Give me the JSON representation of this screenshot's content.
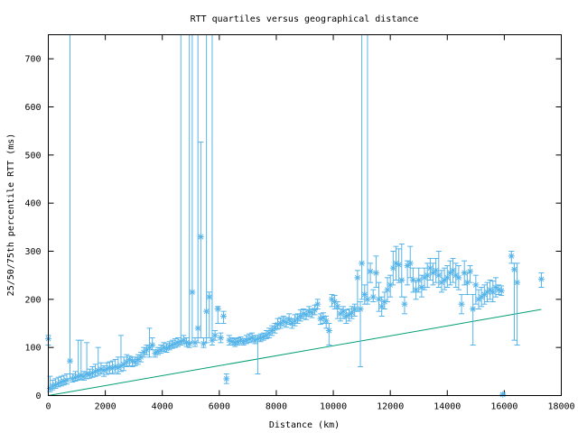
{
  "chart_data": {
    "type": "scatter",
    "title": "RTT quartiles versus geographical distance",
    "xlabel": "Distance (km)",
    "ylabel": "25/50/75th percentile RTT (ms)",
    "xlim": [
      0,
      18000
    ],
    "ylim": [
      0,
      750
    ],
    "xticks": [
      0,
      2000,
      4000,
      6000,
      8000,
      10000,
      12000,
      14000,
      16000,
      18000
    ],
    "yticks": [
      0,
      100,
      200,
      300,
      400,
      500,
      600,
      700
    ],
    "xtick_labels": [
      "0",
      "2000",
      "4000",
      "6000",
      "8000",
      "10000",
      "12000",
      "14000",
      "16000",
      "18000"
    ],
    "ytick_labels": [
      "0",
      "100",
      "200",
      "300",
      "400",
      "500",
      "600",
      "700"
    ],
    "grid": false,
    "legend": "none",
    "colors": {
      "points": "#56b4e9",
      "line": "#009e73"
    },
    "reference_line": {
      "x": [
        0,
        17300
      ],
      "y": [
        0,
        179
      ]
    },
    "series": [
      {
        "marker": "asterisk",
        "points": [
          [
            0,
            118,
            105,
            125
          ],
          [
            60,
            15,
            8,
            40
          ],
          [
            150,
            20,
            12,
            32
          ],
          [
            250,
            22,
            15,
            35
          ],
          [
            350,
            25,
            18,
            38
          ],
          [
            450,
            28,
            20,
            40
          ],
          [
            550,
            30,
            22,
            42
          ],
          [
            650,
            32,
            24,
            45
          ],
          [
            760,
            72,
            35,
            750
          ],
          [
            850,
            35,
            28,
            45
          ],
          [
            950,
            38,
            30,
            50
          ],
          [
            1050,
            40,
            32,
            115
          ],
          [
            1150,
            42,
            34,
            115
          ],
          [
            1250,
            40,
            32,
            50
          ],
          [
            1350,
            45,
            35,
            110
          ],
          [
            1450,
            44,
            36,
            55
          ],
          [
            1550,
            47,
            38,
            60
          ],
          [
            1650,
            50,
            40,
            65
          ],
          [
            1750,
            52,
            42,
            100
          ],
          [
            1850,
            55,
            45,
            68
          ],
          [
            1950,
            52,
            40,
            62
          ],
          [
            2050,
            55,
            44,
            68
          ],
          [
            2150,
            58,
            46,
            70
          ],
          [
            2250,
            57,
            45,
            72
          ],
          [
            2350,
            60,
            48,
            75
          ],
          [
            2450,
            58,
            45,
            80
          ],
          [
            2550,
            62,
            50,
            125
          ],
          [
            2650,
            65,
            52,
            80
          ],
          [
            2750,
            70,
            60,
            85
          ],
          [
            2850,
            75,
            62,
            82
          ],
          [
            2950,
            72,
            60,
            80
          ],
          [
            3050,
            70,
            62,
            80
          ],
          [
            3150,
            75,
            65,
            85
          ],
          [
            3250,
            80,
            70,
            90
          ],
          [
            3350,
            90,
            80,
            100
          ],
          [
            3450,
            95,
            85,
            105
          ],
          [
            3550,
            100,
            80,
            140
          ],
          [
            3650,
            105,
            95,
            120
          ],
          [
            3750,
            88,
            80,
            95
          ],
          [
            3850,
            92,
            85,
            100
          ],
          [
            3950,
            95,
            88,
            105
          ],
          [
            4050,
            100,
            92,
            110
          ],
          [
            4150,
            98,
            90,
            108
          ],
          [
            4250,
            102,
            95,
            112
          ],
          [
            4350,
            105,
            98,
            115
          ],
          [
            4450,
            108,
            100,
            118
          ],
          [
            4550,
            110,
            102,
            120
          ],
          [
            4650,
            112,
            105,
            750
          ],
          [
            4750,
            115,
            108,
            125
          ],
          [
            4850,
            110,
            102,
            120
          ],
          [
            4950,
            108,
            100,
            750
          ],
          [
            5050,
            215,
            110,
            750
          ],
          [
            5150,
            110,
            102,
            120
          ],
          [
            5250,
            140,
            110,
            750
          ],
          [
            5350,
            330,
            120,
            527
          ],
          [
            5450,
            108,
            100,
            120
          ],
          [
            5550,
            175,
            110,
            750
          ],
          [
            5650,
            205,
            120,
            215
          ],
          [
            5750,
            115,
            105,
            750
          ],
          [
            5850,
            125,
            115,
            135
          ],
          [
            5950,
            180,
            150,
            185
          ],
          [
            6050,
            120,
            110,
            130
          ],
          [
            6150,
            165,
            150,
            175
          ],
          [
            6250,
            35,
            25,
            45
          ],
          [
            6350,
            115,
            105,
            125
          ],
          [
            6450,
            112,
            105,
            120
          ],
          [
            6550,
            110,
            102,
            118
          ],
          [
            6650,
            112,
            105,
            120
          ],
          [
            6750,
            115,
            108,
            122
          ],
          [
            6850,
            112,
            105,
            118
          ],
          [
            6950,
            115,
            108,
            125
          ],
          [
            7050,
            118,
            110,
            128
          ],
          [
            7150,
            120,
            112,
            130
          ],
          [
            7250,
            115,
            108,
            125
          ],
          [
            7350,
            118,
            45,
            125
          ],
          [
            7450,
            120,
            112,
            128
          ],
          [
            7550,
            122,
            115,
            130
          ],
          [
            7650,
            125,
            118,
            135
          ],
          [
            7750,
            130,
            120,
            140
          ],
          [
            7850,
            135,
            125,
            145
          ],
          [
            7950,
            140,
            130,
            150
          ],
          [
            8050,
            148,
            138,
            160
          ],
          [
            8150,
            150,
            140,
            162
          ],
          [
            8250,
            155,
            145,
            165
          ],
          [
            8350,
            152,
            142,
            162
          ],
          [
            8450,
            158,
            148,
            170
          ],
          [
            8550,
            150,
            140,
            160
          ],
          [
            8650,
            155,
            145,
            168
          ],
          [
            8750,
            160,
            150,
            170
          ],
          [
            8850,
            165,
            155,
            178
          ],
          [
            8950,
            170,
            160,
            180
          ],
          [
            9050,
            168,
            158,
            178
          ],
          [
            9150,
            175,
            165,
            185
          ],
          [
            9250,
            172,
            162,
            180
          ],
          [
            9350,
            178,
            168,
            188
          ],
          [
            9450,
            190,
            180,
            200
          ],
          [
            9550,
            160,
            148,
            170
          ],
          [
            9650,
            162,
            150,
            172
          ],
          [
            9750,
            155,
            140,
            165
          ],
          [
            9850,
            135,
            105,
            150
          ],
          [
            9950,
            200,
            185,
            210
          ],
          [
            10050,
            195,
            180,
            208
          ],
          [
            10150,
            185,
            160,
            195
          ],
          [
            10250,
            170,
            155,
            180
          ],
          [
            10350,
            175,
            160,
            185
          ],
          [
            10450,
            165,
            150,
            178
          ],
          [
            10550,
            168,
            155,
            180
          ],
          [
            10650,
            172,
            160,
            185
          ],
          [
            10750,
            180,
            165,
            190
          ],
          [
            10850,
            245,
            175,
            260
          ],
          [
            10950,
            180,
            60,
            195
          ],
          [
            11000,
            275,
            200,
            750
          ],
          [
            11100,
            210,
            190,
            230
          ],
          [
            11200,
            200,
            190,
            750
          ],
          [
            11300,
            258,
            235,
            275
          ],
          [
            11400,
            205,
            195,
            220
          ],
          [
            11500,
            255,
            225,
            290
          ],
          [
            11600,
            200,
            175,
            235
          ],
          [
            11700,
            185,
            165,
            205
          ],
          [
            11800,
            195,
            180,
            215
          ],
          [
            11900,
            220,
            195,
            245
          ],
          [
            12000,
            230,
            205,
            250
          ],
          [
            12100,
            265,
            230,
            300
          ],
          [
            12200,
            275,
            240,
            310
          ],
          [
            12300,
            272,
            235,
            305
          ],
          [
            12400,
            240,
            205,
            315
          ],
          [
            12500,
            190,
            170,
            205
          ],
          [
            12600,
            270,
            230,
            280
          ],
          [
            12700,
            275,
            245,
            310
          ],
          [
            12800,
            240,
            215,
            265
          ],
          [
            12900,
            220,
            200,
            240
          ],
          [
            13000,
            240,
            215,
            265
          ],
          [
            13100,
            225,
            205,
            250
          ],
          [
            13200,
            245,
            220,
            265
          ],
          [
            13300,
            250,
            225,
            275
          ],
          [
            13400,
            265,
            240,
            285
          ],
          [
            13500,
            255,
            230,
            275
          ],
          [
            13600,
            260,
            235,
            285
          ],
          [
            13700,
            250,
            225,
            300
          ],
          [
            13800,
            235,
            215,
            260
          ],
          [
            13900,
            240,
            220,
            265
          ],
          [
            14000,
            245,
            225,
            270
          ],
          [
            14100,
            255,
            230,
            280
          ],
          [
            14200,
            260,
            235,
            285
          ],
          [
            14300,
            250,
            225,
            275
          ],
          [
            14400,
            245,
            220,
            270
          ],
          [
            14500,
            190,
            170,
            210
          ],
          [
            14600,
            255,
            230,
            280
          ],
          [
            14700,
            235,
            210,
            255
          ],
          [
            14800,
            258,
            235,
            270
          ],
          [
            14900,
            180,
            105,
            210
          ],
          [
            15000,
            230,
            190,
            250
          ],
          [
            15100,
            200,
            180,
            220
          ],
          [
            15200,
            205,
            185,
            225
          ],
          [
            15300,
            210,
            190,
            230
          ],
          [
            15400,
            215,
            195,
            235
          ],
          [
            15500,
            220,
            200,
            240
          ],
          [
            15600,
            215,
            195,
            238
          ],
          [
            15700,
            225,
            205,
            245
          ],
          [
            15800,
            220,
            210,
            230
          ],
          [
            15900,
            218,
            208,
            228
          ],
          [
            15950,
            2,
            0,
            5
          ],
          [
            16250,
            290,
            275,
            300
          ],
          [
            16350,
            262,
            115,
            275
          ],
          [
            16450,
            235,
            105,
            275
          ],
          [
            17300,
            242,
            225,
            255
          ]
        ]
      }
    ]
  }
}
